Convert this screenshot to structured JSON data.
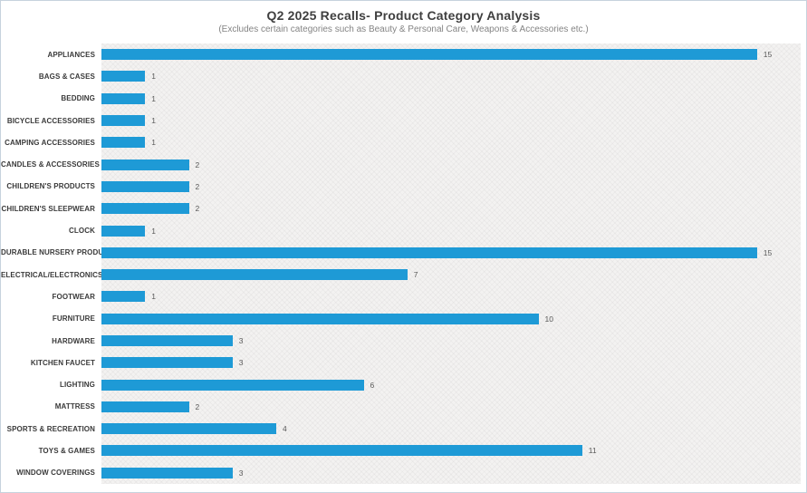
{
  "header": {
    "title": "Q2 2025 Recalls- Product Category Analysis",
    "subtitle": "(Excludes certain categories such as Beauty & Personal Care, Weapons & Accessories etc.)"
  },
  "chart_data": {
    "type": "bar",
    "orientation": "horizontal",
    "title": "Q2 2025 Recalls- Product Category Analysis",
    "subtitle": "(Excludes certain categories such as Beauty & Personal Care, Weapons & Accessories etc.)",
    "categories": [
      "APPLIANCES",
      "BAGS & CASES",
      "BEDDING",
      "BICYCLE ACCESSORIES",
      "CAMPING ACCESSORIES",
      "CANDLES & ACCESSORIES",
      "CHILDREN'S PRODUCTS",
      "CHILDREN'S SLEEPWEAR",
      "CLOCK",
      "DURABLE NURSERY PRODUCT",
      "ELECTRICAL/ELECTRONICS",
      "FOOTWEAR",
      "FURNITURE",
      "HARDWARE",
      "KITCHEN FAUCET",
      "LIGHTING",
      "MATTRESS",
      "SPORTS & RECREATION",
      "TOYS & GAMES",
      "WINDOW COVERINGS"
    ],
    "values": [
      15,
      1,
      1,
      1,
      1,
      2,
      2,
      2,
      1,
      15,
      7,
      1,
      10,
      3,
      3,
      6,
      2,
      4,
      11,
      3
    ],
    "xlabel": "",
    "ylabel": "",
    "xlim": [
      0,
      16
    ],
    "grid": false,
    "legend": false,
    "data_labels": true,
    "bar_color": "#1e9ad6",
    "plot_background": "light gray diagonal crosshatch",
    "value_label_color": "#595959",
    "category_label_color": "#3a3a3a"
  }
}
